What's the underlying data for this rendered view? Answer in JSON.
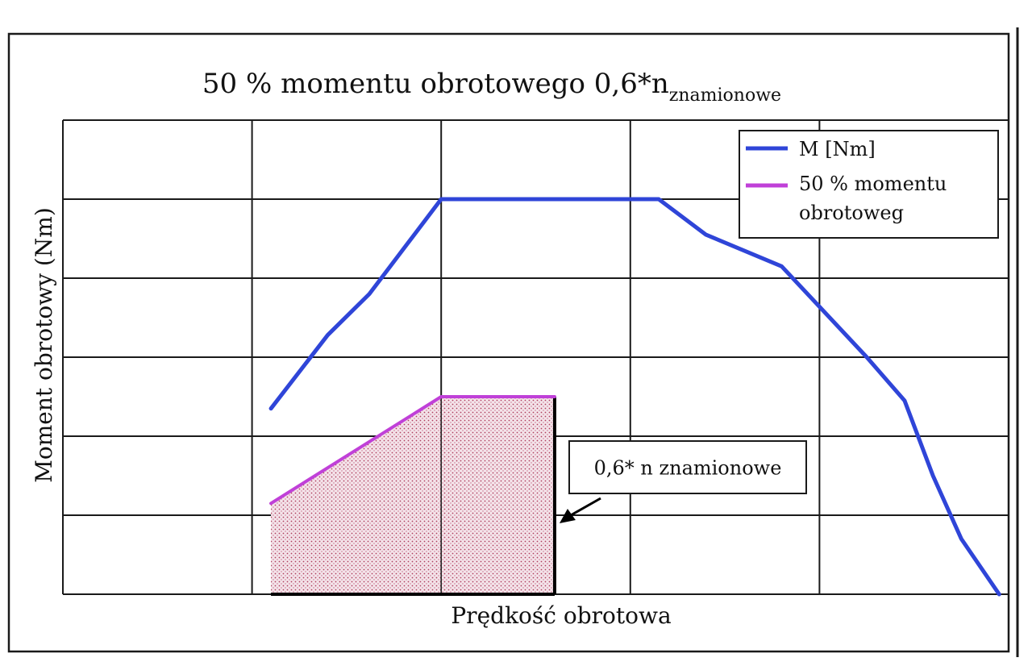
{
  "chart_data": {
    "type": "line",
    "title_main": "50 % momentu obrotowego 0,6*n",
    "title_sub": "znamionowe",
    "xlabel": "Prędkość obrotowa",
    "ylabel": "Moment obrotowy (Nm)",
    "xlim": [
      0,
      5
    ],
    "ylim": [
      0,
      6
    ],
    "grid": true,
    "legend_position": "top-right",
    "series": [
      {
        "name": "M [Nm]",
        "color": "#2f45d8",
        "x": [
          1.1,
          1.4,
          1.62,
          2.0,
          3.15,
          3.4,
          3.8,
          4.25,
          4.45,
          4.6,
          4.75,
          4.95
        ],
        "y": [
          2.35,
          3.28,
          3.8,
          5.0,
          5.0,
          4.55,
          4.15,
          3.0,
          2.45,
          1.5,
          0.7,
          0.0
        ]
      },
      {
        "name": "50 % momentu obrotoweg",
        "legend_lines": [
          "50 % momentu",
          "obrotoweg"
        ],
        "color": "#c040d8",
        "x": [
          1.1,
          1.4,
          2.0,
          2.6
        ],
        "y": [
          1.15,
          1.6,
          2.5,
          2.5
        ]
      }
    ],
    "shaded_region": {
      "x": [
        1.1,
        1.4,
        2.0,
        2.6,
        2.6,
        1.1
      ],
      "y": [
        1.15,
        1.6,
        2.5,
        2.5,
        0.0,
        0.0
      ],
      "fill": "#e8cfd8"
    },
    "cutoff_line": {
      "x": 2.6,
      "y": [
        0.0,
        2.5
      ]
    },
    "annotation": {
      "text": "0,6* n  znamionowe",
      "target_x": 2.6,
      "target_y": 1.0
    }
  }
}
